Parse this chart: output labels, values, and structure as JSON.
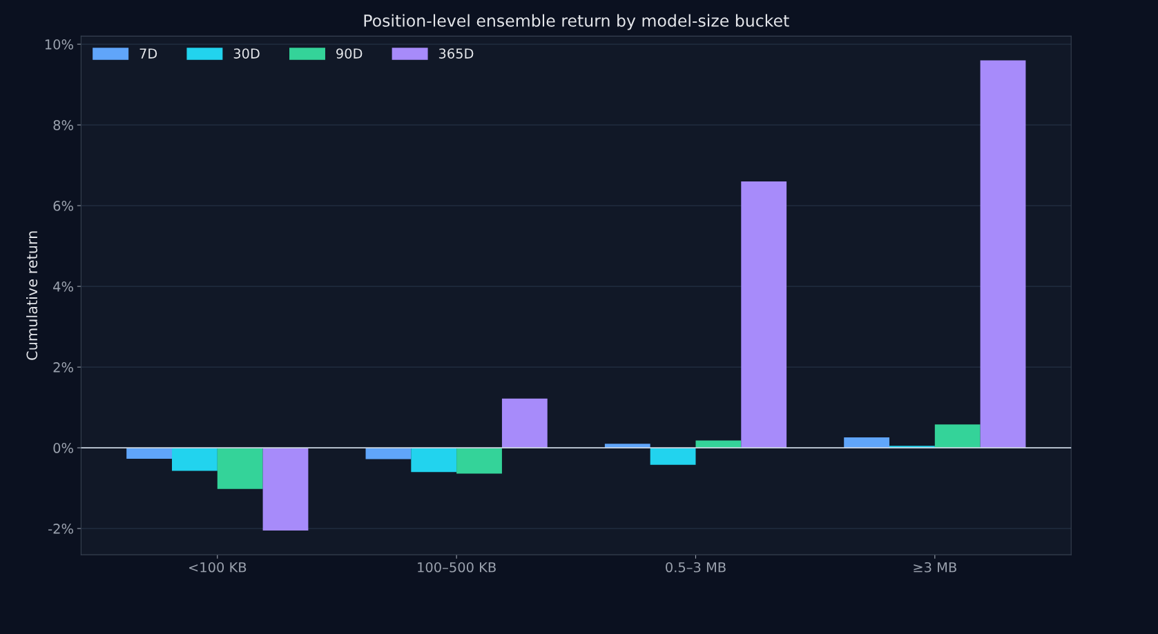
{
  "chart_data": {
    "type": "bar",
    "title": "Position-level ensemble return by model-size bucket",
    "ylabel": "Cumulative return",
    "categories": [
      "<100 KB",
      "100–500 KB",
      "0.5–3 MB",
      "≥3 MB"
    ],
    "series": [
      {
        "name": "7D",
        "color": "#60a5fa",
        "values": [
          -0.27,
          -0.28,
          0.1,
          0.26
        ]
      },
      {
        "name": "30D",
        "color": "#22d3ee",
        "values": [
          -0.57,
          -0.6,
          -0.42,
          0.05
        ]
      },
      {
        "name": "90D",
        "color": "#34d399",
        "values": [
          -1.02,
          -0.64,
          0.18,
          0.58
        ]
      },
      {
        "name": "365D",
        "color": "#a78bfa",
        "values": [
          -2.05,
          1.22,
          6.6,
          9.6
        ]
      }
    ],
    "ylim": [
      -2.65,
      10.2
    ],
    "yticks": [
      {
        "value": -2,
        "label": "-2%"
      },
      {
        "value": 0,
        "label": "0%"
      },
      {
        "value": 2,
        "label": "2%"
      },
      {
        "value": 4,
        "label": "4%"
      },
      {
        "value": 6,
        "label": "6%"
      },
      {
        "value": 8,
        "label": "8%"
      },
      {
        "value": 10,
        "label": "10%"
      }
    ],
    "ref_lines": [
      {
        "axis": "y",
        "value": 0,
        "color": "#cbd5e1"
      }
    ],
    "grid": "y",
    "legend": "top left"
  }
}
